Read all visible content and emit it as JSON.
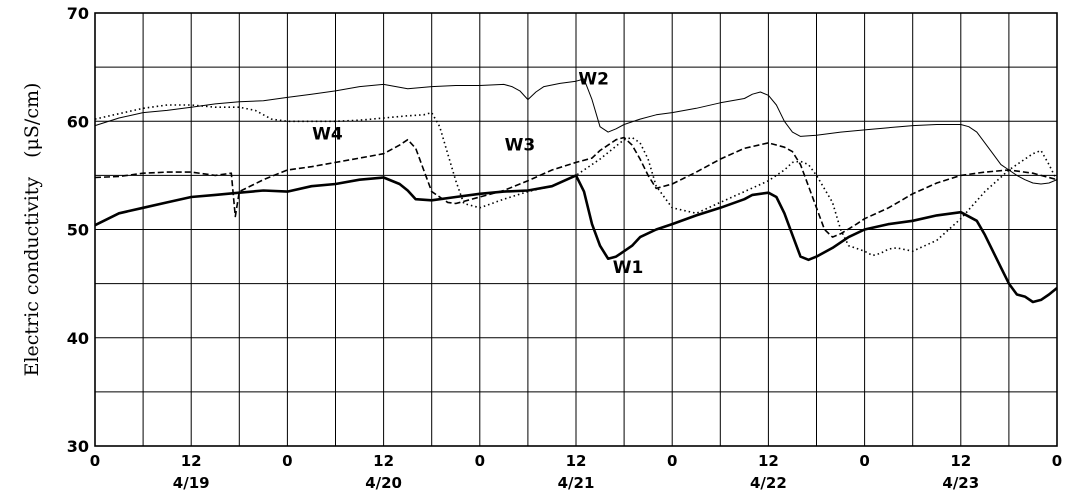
{
  "chart_data": {
    "type": "line",
    "title": "",
    "ylabel": "Electric conductivity　(μS/cm)",
    "xlabel": "",
    "ylim": [
      30,
      70
    ],
    "yticks": [
      30,
      40,
      50,
      60,
      70
    ],
    "ygrid": [
      35,
      40,
      45,
      50,
      55,
      60,
      65
    ],
    "xlim": [
      0,
      120
    ],
    "xgrid_step_hours": 6,
    "xticks": [
      {
        "x": 0,
        "label": "0"
      },
      {
        "x": 12,
        "label": "12"
      },
      {
        "x": 24,
        "label": "0"
      },
      {
        "x": 36,
        "label": "12"
      },
      {
        "x": 48,
        "label": "0"
      },
      {
        "x": 60,
        "label": "12"
      },
      {
        "x": 72,
        "label": "0"
      },
      {
        "x": 84,
        "label": "12"
      },
      {
        "x": 96,
        "label": "0"
      },
      {
        "x": 108,
        "label": "12"
      },
      {
        "x": 120,
        "label": "0"
      }
    ],
    "day_labels": [
      {
        "x": 12,
        "label": "4/19"
      },
      {
        "x": 36,
        "label": "4/20"
      },
      {
        "x": 60,
        "label": "4/21"
      },
      {
        "x": 84,
        "label": "4/22"
      },
      {
        "x": 108,
        "label": "4/23"
      }
    ],
    "grid": true,
    "series": [
      {
        "name": "W1",
        "style": "thick-solid",
        "label_pos": {
          "x": 66.5,
          "y": 46
        },
        "x": [
          0,
          3,
          6,
          9,
          12,
          15,
          18,
          21,
          24,
          27,
          30,
          33,
          36,
          38,
          39,
          40,
          42,
          45,
          48,
          51,
          54,
          57,
          60,
          61,
          62,
          63,
          64,
          65,
          66,
          67,
          68,
          70,
          72,
          75,
          78,
          81,
          82,
          84,
          85,
          86,
          87,
          88,
          89,
          90,
          92,
          94,
          96,
          99,
          102,
          105,
          108,
          110,
          111,
          112,
          113,
          114,
          115,
          116,
          117,
          118,
          119,
          120
        ],
        "y": [
          50.4,
          51.5,
          52.0,
          52.5,
          53.0,
          53.2,
          53.4,
          53.6,
          53.5,
          54.0,
          54.2,
          54.6,
          54.8,
          54.2,
          53.6,
          52.8,
          52.7,
          53.0,
          53.3,
          53.5,
          53.6,
          54.0,
          55.0,
          53.5,
          50.5,
          48.5,
          47.3,
          47.5,
          48.0,
          48.5,
          49.3,
          50.0,
          50.5,
          51.3,
          52.0,
          52.8,
          53.2,
          53.4,
          53.0,
          51.5,
          49.5,
          47.5,
          47.2,
          47.5,
          48.3,
          49.3,
          50.0,
          50.5,
          50.8,
          51.3,
          51.6,
          50.8,
          49.5,
          48.0,
          46.5,
          45.0,
          44.0,
          43.8,
          43.3,
          43.5,
          44.0,
          44.6
        ]
      },
      {
        "name": "W2",
        "style": "thin-solid",
        "label_pos": {
          "x": 62.2,
          "y": 63.4
        },
        "x": [
          0,
          3,
          6,
          9,
          12,
          15,
          18,
          21,
          24,
          27,
          30,
          33,
          36,
          39,
          42,
          45,
          48,
          51,
          52,
          53,
          54,
          55,
          56,
          58,
          60,
          61,
          62,
          63,
          64,
          65,
          66,
          68,
          70,
          72,
          75,
          78,
          81,
          82,
          83,
          84,
          85,
          86,
          87,
          88,
          90,
          93,
          96,
          99,
          102,
          105,
          108,
          109,
          110,
          111,
          112,
          113,
          114,
          115,
          116,
          117,
          118,
          119,
          120
        ],
        "y": [
          59.6,
          60.3,
          60.8,
          61.0,
          61.3,
          61.6,
          61.8,
          61.9,
          62.2,
          62.5,
          62.8,
          63.2,
          63.4,
          63.0,
          63.2,
          63.3,
          63.3,
          63.4,
          63.2,
          62.8,
          62.0,
          62.7,
          63.2,
          63.5,
          63.7,
          63.9,
          62.0,
          59.5,
          59.0,
          59.3,
          59.7,
          60.2,
          60.6,
          60.8,
          61.2,
          61.7,
          62.1,
          62.5,
          62.7,
          62.4,
          61.5,
          60.0,
          59.0,
          58.6,
          58.7,
          59.0,
          59.2,
          59.4,
          59.6,
          59.7,
          59.7,
          59.5,
          59.0,
          58.0,
          57.0,
          56.0,
          55.5,
          55.0,
          54.6,
          54.3,
          54.2,
          54.3,
          54.6
        ]
      },
      {
        "name": "W3",
        "style": "dashed",
        "label_pos": {
          "x": 53,
          "y": 57.3
        },
        "x": [
          0,
          3,
          6,
          9,
          12,
          15,
          17,
          17.5,
          18,
          21,
          24,
          27,
          30,
          33,
          36,
          38,
          39,
          40,
          41,
          42,
          44,
          45,
          46,
          48,
          51,
          54,
          57,
          60,
          62,
          63,
          64,
          65,
          66,
          67,
          68,
          69,
          70,
          72,
          75,
          78,
          81,
          84,
          86,
          87,
          88,
          89,
          90,
          91,
          92,
          93,
          95,
          96,
          99,
          102,
          105,
          108,
          111,
          114,
          117,
          119,
          120
        ],
        "y": [
          54.8,
          54.9,
          55.2,
          55.3,
          55.3,
          55.0,
          55.2,
          51.2,
          53.5,
          54.6,
          55.5,
          55.8,
          56.2,
          56.6,
          57.0,
          57.8,
          58.3,
          57.5,
          55.5,
          53.5,
          52.5,
          52.4,
          52.6,
          53.0,
          53.6,
          54.5,
          55.5,
          56.2,
          56.6,
          57.3,
          57.8,
          58.3,
          58.5,
          57.8,
          56.5,
          55.0,
          53.8,
          54.2,
          55.3,
          56.5,
          57.5,
          58.0,
          57.6,
          57.2,
          56.0,
          54.0,
          52.0,
          50.0,
          49.3,
          49.6,
          50.5,
          51.0,
          52.0,
          53.3,
          54.3,
          55.0,
          55.3,
          55.5,
          55.2,
          54.8,
          54.6
        ]
      },
      {
        "name": "W4",
        "style": "dotted",
        "label_pos": {
          "x": 29,
          "y": 58.3
        },
        "x": [
          0,
          3,
          6,
          9,
          12,
          15,
          18,
          20,
          21,
          22,
          24,
          27,
          30,
          33,
          36,
          39,
          41,
          42,
          43,
          44,
          45,
          46,
          48,
          51,
          54,
          57,
          60,
          63,
          65,
          66,
          67,
          68,
          69,
          70,
          72,
          75,
          78,
          81,
          84,
          86,
          87,
          88,
          89,
          90,
          92,
          93,
          94,
          96,
          97,
          98,
          99,
          100,
          102,
          105,
          108,
          111,
          114,
          116,
          117,
          118,
          119,
          120
        ],
        "y": [
          60.2,
          60.7,
          61.2,
          61.5,
          61.5,
          61.3,
          61.3,
          61.0,
          60.6,
          60.2,
          60.0,
          60.0,
          60.0,
          60.1,
          60.3,
          60.5,
          60.6,
          60.8,
          59.5,
          57.0,
          54.5,
          52.4,
          52.0,
          52.8,
          53.5,
          54.0,
          55.0,
          56.5,
          57.7,
          58.3,
          58.5,
          58.0,
          56.5,
          54.0,
          52.0,
          51.5,
          52.5,
          53.5,
          54.5,
          55.5,
          56.2,
          56.3,
          56.0,
          55.0,
          52.5,
          50.0,
          48.5,
          48.0,
          47.6,
          47.8,
          48.2,
          48.3,
          48.0,
          49.0,
          51.0,
          53.5,
          55.5,
          56.5,
          57.0,
          57.3,
          56.0,
          54.5
        ]
      }
    ]
  }
}
